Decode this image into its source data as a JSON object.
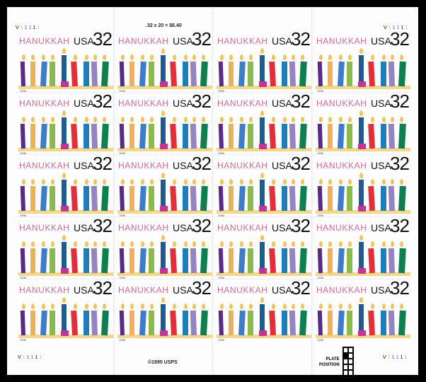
{
  "stamp": {
    "title": "HANUKKAH",
    "country": "USA",
    "denomination": "32",
    "year": "1996"
  },
  "grid": {
    "rows": 5,
    "cols": 4
  },
  "candles": [
    {
      "color": "#5a2a8a",
      "tall": false
    },
    {
      "color": "#efb155",
      "tall": false
    },
    {
      "color": "#3d7cc9",
      "tall": false
    },
    {
      "color": "#8cb94b",
      "tall": false
    },
    {
      "color": "#1c5a98",
      "tall": true
    },
    {
      "color": "#e0313b",
      "tall": false
    },
    {
      "color": "#1f7eb8",
      "tall": false
    },
    {
      "color": "#9484c2",
      "tall": false
    },
    {
      "color": "#0f7f4f",
      "tall": false
    }
  ],
  "margin": {
    "price_note": ".32 x 20 = $6.40",
    "copyright": "©1995 USPS",
    "plate_label_1": "PLATE",
    "plate_label_2": "POSITION",
    "plate_prefix": "V",
    "plate_digits": [
      {
        "d": "1",
        "color": "#e8c84a"
      },
      {
        "d": "1",
        "color": "#c23593"
      },
      {
        "d": "1",
        "color": "#3d7cc9"
      },
      {
        "d": "1",
        "color": "#111111"
      },
      {
        "d": "1",
        "color": "#e0a0b8"
      }
    ],
    "plate_position_marked": 2
  }
}
